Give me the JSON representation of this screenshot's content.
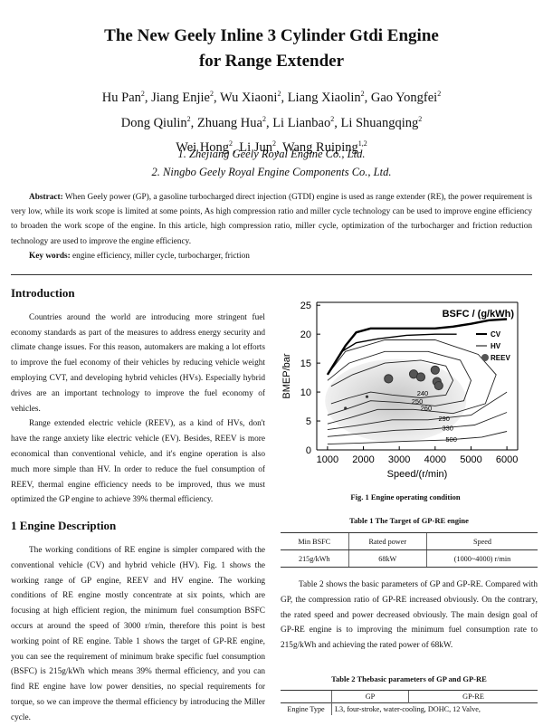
{
  "paper": {
    "title_line1": "The New Geely Inline 3 Cylinder Gtdi Engine",
    "title_line2": "for Range Extender",
    "authors": [
      [
        {
          "n": "Hu Pan",
          "s": "2"
        },
        {
          "n": "Jiang Enjie",
          "s": "2"
        },
        {
          "n": "Wu Xiaoni",
          "s": "2"
        },
        {
          "n": "Liang Xiaolin",
          "s": "2"
        },
        {
          "n": "Gao Yongfei",
          "s": "2"
        }
      ],
      [
        {
          "n": "Dong Qiulin",
          "s": "2"
        },
        {
          "n": "Zhuang Hua",
          "s": "2"
        },
        {
          "n": "Li Lianbao",
          "s": "2"
        },
        {
          "n": "Li Shuangqing",
          "s": "2"
        }
      ],
      [
        {
          "n": "Wei Hong",
          "s": "2"
        },
        {
          "n": "Li Jun",
          "s": "2"
        },
        {
          "n": "Wang Ruiping",
          "s": "1,2"
        }
      ]
    ],
    "affil1": "1. Zhejiang Geely Royal Engine Co., Ltd.",
    "affil2": "2. Ningbo Geely Royal Engine Components Co., Ltd.",
    "abstract_label": "Abstract:",
    "abstract_text": " When Geely power (GP), a gasoline turbocharged direct injection (GTDI) engine is used as range extender (RE), the power requirement is very low, while its work scope is limited at some points, As high compression ratio and miller cycle technology can be used to improve engine efficiency to broaden the work scope of the engine. In this article, high compression ratio, miller cycle, optimization of the turbocharger and friction reduction technology are used to improve the engine efficiency.",
    "keywords_label": "Key words:",
    "keywords_text": " engine efficiency, miller cycle, turbocharger, friction"
  },
  "left": {
    "intro_heading": "Introduction",
    "intro_p1": "Countries around the world are introducing more stringent fuel economy standards as part of the measures to address energy security and climate change issues. For this reason, automakers are making a lot efforts to improve the fuel economy of their vehicles by reducing vehicle weight employing CVT, and developing hybrid vehicles (HVs). Especially hybrid drives are an important technology to improve the fuel economy of vehicles.",
    "intro_p2": "Range extended electric vehicle (REEV), as a kind of HVs, don't have the range anxiety like electric vehicle (EV). Besides, REEV is more economical than conventional vehicle, and it's engine operation is also much more simple than HV. In order to reduce the fuel consumption of REEV, thermal engine efficiency needs to be improved, thus we must optimized the GP engine to achieve 39% thermal efficiency.",
    "sec1_heading": "1   Engine Description",
    "sec1_p1": "The working conditions of RE engine is simpler compared with the conventional vehicle (CV) and hybrid vehicle (HV). Fig. 1 shows the working range of GP engine, REEV and HV engine. The working conditions of RE engine mostly concentrate at six points, which are focusing at high efficient region, the minimum fuel consumption BSFC occurs at around the speed of 3000 r/min, therefore this point is best working point of RE engine. Table 1 shows the target of GP-RE engine, you can see the requirement of minimum brake specific fuel consumption (BSFC) is 215g/kWh which means 39% thermal efficiency, and you can find RE engine have low power densities, no special requirements for torque, so we can improve the thermal efficiency by introducing the Miller cycle."
  },
  "figure": {
    "caption": "Fig. 1   Engine operating condition"
  },
  "chart_data": {
    "type": "line",
    "title": "BSFC / (g/kWh)",
    "xlabel": "Speed/(r/min)",
    "ylabel": "BMEP/bar",
    "xlim": [
      700,
      6300
    ],
    "ylim": [
      0,
      25.5
    ],
    "xticks": [
      1000,
      2000,
      3000,
      4000,
      5000,
      6000
    ],
    "yticks": [
      0,
      5,
      10,
      15,
      20,
      25
    ],
    "contour_labels": [
      {
        "text": "240",
        "x": 3650,
        "y": 9.4
      },
      {
        "text": "250",
        "x": 3500,
        "y": 8.0
      },
      {
        "text": "260",
        "x": 3750,
        "y": 6.8
      },
      {
        "text": "290",
        "x": 4250,
        "y": 5.0
      },
      {
        "text": "330",
        "x": 4350,
        "y": 3.4
      },
      {
        "text": "500",
        "x": 4450,
        "y": 1.4
      }
    ],
    "series": [
      {
        "name": "CV",
        "points": [
          [
            1000,
            13
          ],
          [
            1250,
            15.5
          ],
          [
            1500,
            18
          ],
          [
            1800,
            20.3
          ],
          [
            2200,
            21
          ],
          [
            3000,
            21
          ],
          [
            4000,
            21
          ],
          [
            4500,
            21.3
          ],
          [
            5000,
            21.8
          ],
          [
            5500,
            22.4
          ],
          [
            6000,
            22.6
          ]
        ]
      },
      {
        "name": "HV",
        "points": [
          [
            1400,
            17
          ],
          [
            1800,
            18.5
          ],
          [
            2400,
            19.2
          ],
          [
            3200,
            19.8
          ],
          [
            4000,
            20
          ],
          [
            4600,
            20
          ]
        ]
      },
      {
        "name": "REEV",
        "points": [
          [
            2700,
            12.3
          ],
          [
            3400,
            13.1
          ],
          [
            3600,
            12.6
          ],
          [
            4000,
            13.8
          ],
          [
            4050,
            11.8
          ],
          [
            4100,
            11.1
          ]
        ]
      }
    ],
    "legend": [
      "CV",
      "HV",
      "REEV"
    ],
    "legend_position": "right",
    "grid": false
  },
  "right": {
    "table1_caption": "Table 1   The Target of GP-RE engine",
    "table1_headers": [
      "Min BSFC",
      "Rated power",
      "Speed"
    ],
    "table1_row": [
      "215g/kWh",
      "68kW",
      "(1000~4000) r/min"
    ],
    "para": "Table 2 shows the basic parameters of GP and GP-RE. Compared with GP, the compression ratio of GP-RE increased obviously. On the contrary, the rated speed and power decreased obviously. The main design goal of GP-RE engine is to improving the minimum fuel consumption rate to 215g/kWh and achieving the rated power of 68kW.",
    "table2_caption": "Table 2   Thebasic parameters of GP and GP-RE",
    "table2_headers": [
      "",
      "GP",
      "GP-RE"
    ],
    "table2_row_label": "Engine Type",
    "table2_row_value": "L3, four-stroke, water-cooling, DOHC, 12 Valve,"
  }
}
